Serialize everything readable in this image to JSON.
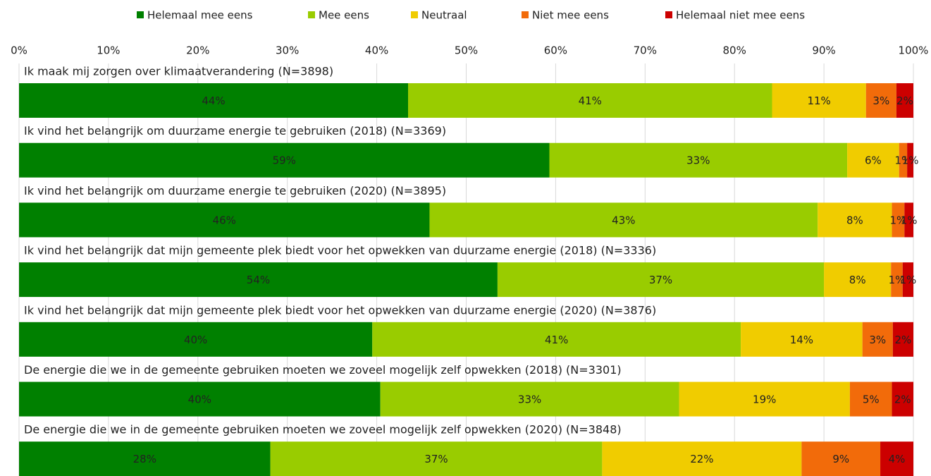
{
  "chart_data": {
    "type": "stacked-bar-horizontal",
    "categories": [
      "Ik maak mij zorgen over klimaatverandering (N=3898)",
      "Ik vind het belangrijk om duurzame energie te gebruiken (2018) (N=3369)",
      "Ik vind het belangrijk om duurzame energie te gebruiken (2020) (N=3895)",
      "Ik vind het belangrijk dat mijn gemeente plek biedt voor het opwekken van duurzame energie (2018) (N=3336)",
      "Ik vind het belangrijk dat mijn gemeente plek biedt voor het opwekken van duurzame energie (2020) (N=3876)",
      "De energie die we in de gemeente gebruiken moeten we zoveel mogelijk zelf opwekken (2018) (N=3301)",
      "De energie die we in de gemeente gebruiken moeten we zoveel mogelijk zelf opwekken (2020) (N=3848)"
    ],
    "series": [
      {
        "name": "Helemaal mee eens",
        "color": "#008000",
        "values": [
          43.5,
          59.3,
          45.9,
          53.5,
          39.5,
          40.4,
          28.1
        ],
        "value_labels": [
          "44%",
          "59%",
          "46%",
          "54%",
          "40%",
          "40%",
          "28%"
        ]
      },
      {
        "name": "Mee eens",
        "color": "#99cc00",
        "values": [
          40.7,
          33.3,
          43.4,
          36.5,
          41.2,
          33.4,
          37.1
        ],
        "value_labels": [
          "41%",
          "33%",
          "43%",
          "37%",
          "41%",
          "33%",
          "37%"
        ]
      },
      {
        "name": "Neutraal",
        "color": "#f0cc00",
        "values": [
          10.5,
          5.8,
          8.3,
          7.5,
          13.6,
          19.1,
          22.3
        ],
        "value_labels": [
          "11%",
          "6%",
          "8%",
          "8%",
          "14%",
          "19%",
          "22%"
        ]
      },
      {
        "name": "Niet mee eens",
        "color": "#f26b0a",
        "values": [
          3.4,
          0.9,
          1.4,
          1.3,
          3.4,
          4.7,
          8.8
        ],
        "value_labels": [
          "3%",
          "1%",
          "1%",
          "1%",
          "3%",
          "5%",
          "9%"
        ]
      },
      {
        "name": "Helemaal niet mee eens",
        "color": "#cc0000",
        "values": [
          1.9,
          0.7,
          1.0,
          1.2,
          2.3,
          2.4,
          3.7
        ],
        "value_labels": [
          "2%",
          "1%",
          "1%",
          "1%",
          "2%",
          "2%",
          "4%"
        ]
      }
    ],
    "xlim": [
      0,
      100
    ],
    "xticks": [
      {
        "value": 0,
        "label": "0%"
      },
      {
        "value": 10,
        "label": "10%"
      },
      {
        "value": 20,
        "label": "20%"
      },
      {
        "value": 30,
        "label": "30%"
      },
      {
        "value": 40,
        "label": "40%"
      },
      {
        "value": 50,
        "label": "50%"
      },
      {
        "value": 60,
        "label": "60%"
      },
      {
        "value": 70,
        "label": "70%"
      },
      {
        "value": 80,
        "label": "80%"
      },
      {
        "value": 90,
        "label": "90%"
      },
      {
        "value": 100,
        "label": "100%"
      }
    ],
    "grid": true,
    "legend": "top"
  }
}
